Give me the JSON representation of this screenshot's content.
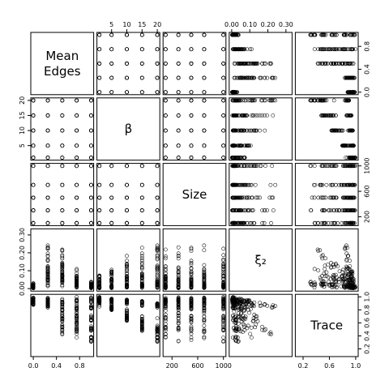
{
  "chart_data": {
    "type": "scatter",
    "plot_kind": "scatterplot-matrix",
    "variables": [
      {
        "label": [
          "Mean",
          "Edges"
        ],
        "range": [
          0,
          1
        ],
        "ticks": [
          0.0,
          0.4,
          0.8
        ],
        "tick_labels": [
          "0.0",
          "0.4",
          "0.8"
        ],
        "levels": [
          0,
          0.25,
          0.5,
          0.75,
          1.0
        ]
      },
      {
        "label": [
          "β"
        ],
        "range": [
          1,
          20
        ],
        "ticks": [
          5,
          10,
          15,
          20
        ],
        "tick_labels": [
          "5",
          "10",
          "15",
          "20"
        ],
        "levels": [
          1,
          5,
          10,
          15,
          20
        ]
      },
      {
        "label": [
          "Size"
        ],
        "range": [
          100,
          1000
        ],
        "ticks": [
          200,
          600,
          1000
        ],
        "tick_labels": [
          "200",
          "600",
          "1000"
        ],
        "levels": [
          100,
          300,
          500,
          700,
          1000
        ]
      },
      {
        "label": [
          "ξ₂"
        ],
        "range": [
          0,
          0.32
        ],
        "ticks": [
          0.0,
          0.1,
          0.2,
          0.3
        ],
        "tick_labels": [
          "0.00",
          "0.10",
          "0.20",
          "0.30"
        ],
        "xi_by_mean_edges": [
          [
            0,
            0.03
          ],
          [
            0.25,
            0.3
          ],
          [
            0.5,
            0.26
          ],
          [
            0.75,
            0.12
          ],
          [
            1.0,
            0.04
          ]
        ]
      },
      {
        "label": [
          "Trace"
        ],
        "range": [
          0.12,
          1.0
        ],
        "ticks": [
          0.2,
          0.6,
          1.0
        ],
        "tick_labels": [
          "0.2",
          "0.6",
          "1.0"
        ],
        "extra_ticks": [
          0.4,
          0.8
        ],
        "extra_tick_labels": [
          "0.4",
          "0.8"
        ]
      }
    ],
    "grid": false,
    "legend": "none"
  }
}
